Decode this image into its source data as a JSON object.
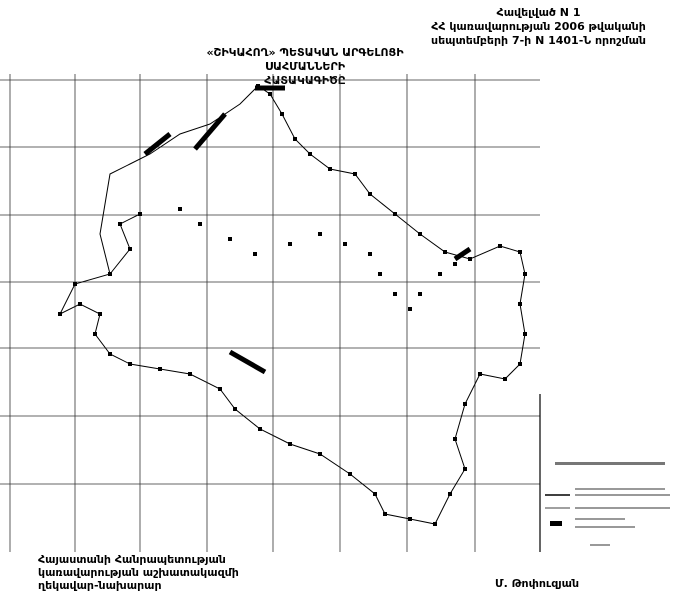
{
  "annex": {
    "line1": "Հավելված N 1",
    "line2": "ՀՀ կառավարության 2006 թվականի",
    "line3": "սեպտեմբերի 7-ի N 1401-Ն որոշման"
  },
  "title": {
    "line1": "«ՇԻԿԱՀՈՂ» ՊԵՏԱԿԱՆ ԱՐԳԵԼՈՑԻ ՍԱՀՄԱՆՆԵՐԻ",
    "line2": "ՀԱՏԱԿԱԳԻԾԸ"
  },
  "signature_block": {
    "position_line1": "Հայաստանի Հանրապետության",
    "position_line2": "կառավարության աշխատակազմի",
    "position_line3": "ղեկավար-նախարար",
    "name": "Մ. Թոփուզյան"
  },
  "colors": {
    "ink": "#000000",
    "paper": "#ffffff",
    "grid": "#333333"
  }
}
